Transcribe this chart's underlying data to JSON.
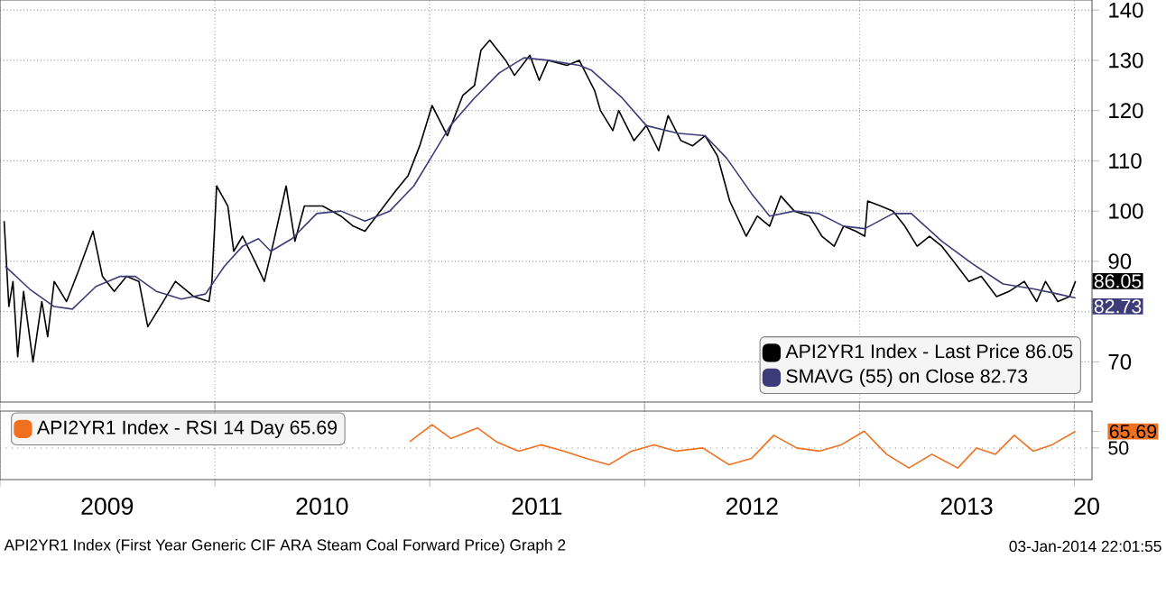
{
  "chart_data": [
    {
      "type": "line",
      "xlim": [
        "2009-01-01",
        "2014-01-31"
      ],
      "ylim": [
        62,
        142
      ],
      "yticks": [
        70,
        {
          "value": 80,
          "label": null
        },
        90,
        100,
        110,
        120,
        130,
        140
      ],
      "xticks": [
        {
          "value": "2009-01-01",
          "label": null
        },
        {
          "value": "2010-01-01",
          "label": null
        },
        {
          "value": "2011-01-01",
          "label": null
        },
        {
          "value": "2012-01-01",
          "label": null
        },
        {
          "value": "2013-01-01",
          "label": null
        },
        {
          "value": "2014-01-01",
          "label": null
        }
      ],
      "tick_labels": "y",
      "grid": true,
      "legend": "bottom right",
      "line_style": "solid",
      "series": [
        {
          "name": "API2YR1 Index - Last Price 86.05",
          "color": "#000000",
          "x": [
            "2009-01-08",
            "2009-01-16",
            "2009-01-23",
            "2009-01-31",
            "2009-02-10",
            "2009-02-26",
            "2009-03-13",
            "2009-03-23",
            "2009-04-03",
            "2009-04-24",
            "2009-05-14",
            "2009-06-08",
            "2009-06-24",
            "2009-07-14",
            "2009-08-04",
            "2009-08-25",
            "2009-09-09",
            "2009-09-30",
            "2009-10-26",
            "2009-11-26",
            "2009-12-22",
            "2009-12-27",
            "2010-01-04",
            "2010-01-23",
            "2010-02-02",
            "2010-02-17",
            "2010-03-10",
            "2010-03-26",
            "2010-04-11",
            "2010-05-02",
            "2010-05-17",
            "2010-06-02",
            "2010-07-03",
            "2010-08-03",
            "2010-08-24",
            "2010-09-13",
            "2010-10-09",
            "2010-11-04",
            "2010-11-25",
            "2010-12-15",
            "2011-01-05",
            "2011-01-31",
            "2011-02-26",
            "2011-03-18",
            "2011-03-29",
            "2011-04-13",
            "2011-05-10",
            "2011-05-25",
            "2011-06-20",
            "2011-07-06",
            "2011-07-21",
            "2011-08-22",
            "2011-09-12",
            "2011-10-08",
            "2011-10-18",
            "2011-11-08",
            "2011-11-18",
            "2011-12-14",
            "2012-01-04",
            "2012-01-25",
            "2012-02-10",
            "2012-03-03",
            "2012-03-23",
            "2012-04-13",
            "2012-05-04",
            "2012-05-25",
            "2012-06-10",
            "2012-06-22",
            "2012-07-11",
            "2012-08-01",
            "2012-08-20",
            "2012-09-12",
            "2012-10-08",
            "2012-10-29",
            "2012-11-19",
            "2012-12-05",
            "2012-12-26",
            "2013-01-10",
            "2013-01-15",
            "2013-02-06",
            "2013-02-27",
            "2013-03-19",
            "2013-04-09",
            "2013-04-30",
            "2013-05-21",
            "2013-06-10",
            "2013-07-06",
            "2013-07-27",
            "2013-08-22",
            "2013-09-12",
            "2013-10-08",
            "2013-10-29",
            "2013-11-13",
            "2013-12-04",
            "2013-12-24",
            "2014-01-03"
          ],
          "values": [
            98,
            81,
            86,
            71,
            84,
            70,
            82,
            75,
            86,
            82,
            88,
            96,
            87,
            84,
            87,
            86,
            77,
            81,
            86,
            83,
            82,
            86,
            105,
            101,
            92,
            95,
            90,
            86,
            94,
            105,
            94,
            101,
            101,
            99,
            97,
            96,
            100,
            104,
            107,
            113,
            121,
            115,
            123,
            125,
            132,
            134,
            130,
            127,
            131,
            126,
            130,
            129,
            130,
            124,
            120,
            116,
            120,
            114,
            117,
            112,
            119,
            114,
            113,
            115,
            111,
            102,
            98,
            95,
            99,
            97,
            103,
            100,
            99,
            95,
            93,
            97,
            96,
            95,
            102,
            101,
            100,
            97,
            93,
            95,
            93,
            90,
            86,
            87,
            83,
            84,
            86,
            82,
            86,
            82,
            83,
            86.05
          ],
          "value_labels": [
            null,
            null,
            null,
            null,
            null,
            null,
            null,
            null,
            null,
            null,
            null,
            null,
            null,
            null,
            null,
            null,
            null,
            null,
            null,
            null,
            null,
            null,
            null,
            null,
            null,
            null,
            null,
            null,
            null,
            null,
            null,
            null,
            null,
            null,
            null,
            null,
            null,
            null,
            null,
            null,
            null,
            null,
            null,
            null,
            null,
            null,
            null,
            null,
            null,
            null,
            null,
            null,
            null,
            null,
            null,
            null,
            null,
            null,
            null,
            null,
            null,
            null,
            null,
            null,
            null,
            null,
            null,
            null,
            null,
            null,
            null,
            null,
            null,
            null,
            null,
            null,
            null,
            null,
            null,
            null,
            null,
            null,
            null,
            null,
            null,
            null,
            null,
            null,
            null,
            null,
            null,
            null,
            null,
            null,
            null,
            "86.05"
          ]
        },
        {
          "name": "SMAVG (55) on Close 82.73",
          "color": "#3c3c78",
          "x": [
            "2009-01-10",
            "2009-02-20",
            "2009-04-03",
            "2009-05-04",
            "2009-06-13",
            "2009-07-24",
            "2009-08-19",
            "2009-09-24",
            "2009-11-05",
            "2009-12-16",
            "2010-01-17",
            "2010-02-17",
            "2010-03-16",
            "2010-04-06",
            "2010-05-12",
            "2010-06-23",
            "2010-08-03",
            "2010-09-13",
            "2010-10-25",
            "2010-12-05",
            "2011-01-05",
            "2011-02-05",
            "2011-03-18",
            "2011-04-29",
            "2011-06-10",
            "2011-07-21",
            "2011-09-12",
            "2011-10-03",
            "2011-11-24",
            "2012-01-04",
            "2012-02-26",
            "2012-04-13",
            "2012-05-20",
            "2012-07-01",
            "2012-08-01",
            "2012-09-12",
            "2012-10-24",
            "2012-12-05",
            "2013-01-10",
            "2013-02-27",
            "2013-03-30",
            "2013-05-21",
            "2013-07-12",
            "2013-09-02",
            "2013-10-24",
            "2013-12-04",
            "2014-01-03"
          ],
          "values": [
            89,
            84.5,
            81,
            80.5,
            85,
            87,
            87,
            84,
            82.5,
            83.5,
            89,
            93,
            94.5,
            92,
            94.5,
            99.5,
            100,
            98,
            100,
            105,
            111,
            117,
            122.5,
            127.5,
            130.5,
            130,
            129,
            128,
            122.5,
            117,
            115.5,
            115,
            110.5,
            103.5,
            99,
            100,
            99.5,
            97,
            96.5,
            99.5,
            99.5,
            94,
            89.5,
            85.5,
            84.5,
            83.5,
            82.73
          ],
          "value_labels": [
            null,
            null,
            null,
            null,
            null,
            null,
            null,
            null,
            null,
            null,
            null,
            null,
            null,
            null,
            null,
            null,
            null,
            null,
            null,
            null,
            null,
            null,
            null,
            null,
            null,
            null,
            null,
            null,
            null,
            null,
            null,
            null,
            null,
            null,
            null,
            null,
            null,
            null,
            null,
            null,
            null,
            null,
            null,
            null,
            null,
            null,
            "82.73"
          ]
        }
      ]
    },
    {
      "type": "line",
      "xlim": [
        "2009-01-01",
        "2014-01-31"
      ],
      "ylim": [
        20,
        85
      ],
      "yticks": [
        50,
        65.69
      ],
      "ref_lines": [
        {
          "axis": "y",
          "value": 50,
          "line_style": "dotted"
        }
      ],
      "xticks": [
        {
          "value": "2009-01-01",
          "label": null
        },
        {
          "value": "2009-07-02",
          "label": "2009"
        },
        {
          "value": "2010-01-01",
          "label": null
        },
        {
          "value": "2010-07-02",
          "label": "2010"
        },
        {
          "value": "2011-01-01",
          "label": null
        },
        {
          "value": "2011-07-02",
          "label": "2011"
        },
        {
          "value": "2012-01-01",
          "label": null
        },
        {
          "value": "2012-07-02",
          "label": "2012"
        },
        {
          "value": "2013-01-01",
          "label": null
        },
        {
          "value": "2013-07-02",
          "label": "2013"
        },
        {
          "value": "2014-01-01",
          "label": null
        },
        {
          "value": "2014-01-22",
          "label": "20"
        }
      ],
      "grid": "x",
      "legend": "top left",
      "line_style": "solid",
      "series": [
        {
          "name": "API2YR1 Index - RSI 14 Day 65.69",
          "color": "#f07020",
          "x": [
            "2010-11-28",
            "2011-01-05",
            "2011-02-06",
            "2011-03-23",
            "2011-04-24",
            "2011-06-01",
            "2011-07-09",
            "2011-08-17",
            "2011-09-24",
            "2011-11-01",
            "2011-12-10",
            "2012-01-17",
            "2012-02-24",
            "2012-04-09",
            "2012-05-24",
            "2012-07-01",
            "2012-08-08",
            "2012-09-16",
            "2012-10-24",
            "2012-12-01",
            "2013-01-09",
            "2013-02-16",
            "2013-03-26",
            "2013-05-04",
            "2013-06-17",
            "2013-07-19",
            "2013-08-20",
            "2013-09-21",
            "2013-10-23",
            "2013-11-24",
            "2014-01-03"
          ],
          "values": [
            56,
            72,
            59,
            69,
            56,
            47,
            53,
            47,
            40,
            34,
            47,
            53,
            47,
            50,
            34,
            40,
            62,
            50,
            47,
            53,
            66,
            44,
            31,
            44,
            31,
            50,
            44,
            62,
            47,
            53,
            65.69
          ]
        }
      ],
      "annotations": [
        "API2YR1 Index (First Year Generic CIF ARA Steam Coal Forward Price) Graph 2",
        "03-Jan-2014 22:01:55"
      ]
    }
  ]
}
